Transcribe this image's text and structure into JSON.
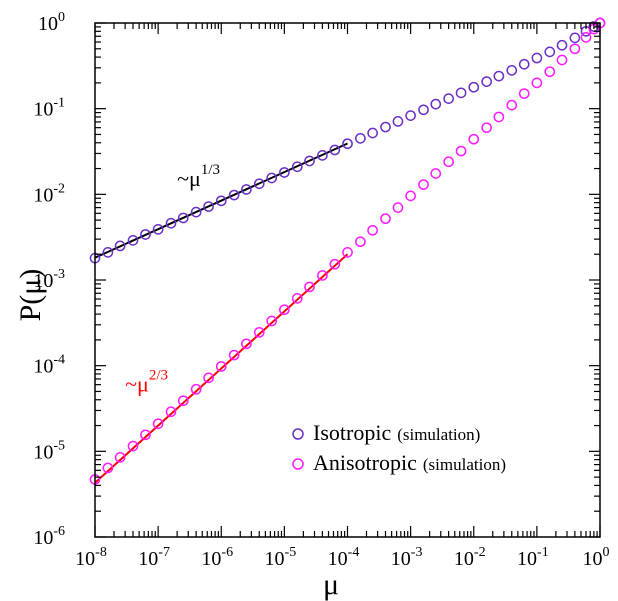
{
  "chart_data": {
    "type": "scatter",
    "xscale": "log",
    "yscale": "log",
    "xlim": [
      1e-08,
      1
    ],
    "ylim": [
      1e-06,
      1
    ],
    "xlabel": "μ",
    "ylabel": "P(μ)",
    "grid": false,
    "legend_position": "bottom-right",
    "x_ticks": [
      {
        "base": "10",
        "exp": "-8",
        "value": 1e-08
      },
      {
        "base": "10",
        "exp": "-7",
        "value": 1e-07
      },
      {
        "base": "10",
        "exp": "-6",
        "value": 1e-06
      },
      {
        "base": "10",
        "exp": "-5",
        "value": 1e-05
      },
      {
        "base": "10",
        "exp": "-4",
        "value": 0.0001
      },
      {
        "base": "10",
        "exp": "-3",
        "value": 0.001
      },
      {
        "base": "10",
        "exp": "-2",
        "value": 0.01
      },
      {
        "base": "10",
        "exp": "-1",
        "value": 0.1
      },
      {
        "base": "10",
        "exp": "0",
        "value": 1
      }
    ],
    "y_ticks": [
      {
        "base": "10",
        "exp": "-6",
        "value": 1e-06
      },
      {
        "base": "10",
        "exp": "-5",
        "value": 1e-05
      },
      {
        "base": "10",
        "exp": "-4",
        "value": 0.0001
      },
      {
        "base": "10",
        "exp": "-3",
        "value": 0.001
      },
      {
        "base": "10",
        "exp": "-2",
        "value": 0.01
      },
      {
        "base": "10",
        "exp": "-1",
        "value": 0.1
      },
      {
        "base": "10",
        "exp": "0",
        "value": 1
      }
    ],
    "series": [
      {
        "name": "Isotropic",
        "name_suffix": "(simulation)",
        "marker": "open-circle",
        "color": "#6a2fc8",
        "points": [
          [
            1e-08,
            0.0018
          ],
          [
            1.6e-08,
            0.0021
          ],
          [
            2.5e-08,
            0.0025
          ],
          [
            4e-08,
            0.0029
          ],
          [
            6.3e-08,
            0.0034
          ],
          [
            1e-07,
            0.0039
          ],
          [
            1.6e-07,
            0.0046
          ],
          [
            2.5e-07,
            0.0053
          ],
          [
            4e-07,
            0.0062
          ],
          [
            6.3e-07,
            0.0072
          ],
          [
            1e-06,
            0.0084
          ],
          [
            1.6e-06,
            0.0098
          ],
          [
            2.5e-06,
            0.0114
          ],
          [
            4e-06,
            0.0133
          ],
          [
            6.3e-06,
            0.0155
          ],
          [
            1e-05,
            0.018
          ],
          [
            1.6e-05,
            0.021
          ],
          [
            2.5e-05,
            0.0245
          ],
          [
            4e-05,
            0.0285
          ],
          [
            6.3e-05,
            0.033
          ],
          [
            0.0001,
            0.039
          ],
          [
            0.00016,
            0.045
          ],
          [
            0.00025,
            0.052
          ],
          [
            0.0004,
            0.061
          ],
          [
            0.00063,
            0.071
          ],
          [
            0.001,
            0.083
          ],
          [
            0.0016,
            0.097
          ],
          [
            0.0025,
            0.113
          ],
          [
            0.004,
            0.131
          ],
          [
            0.0063,
            0.153
          ],
          [
            0.01,
            0.178
          ],
          [
            0.016,
            0.207
          ],
          [
            0.025,
            0.24
          ],
          [
            0.04,
            0.28
          ],
          [
            0.063,
            0.33
          ],
          [
            0.1,
            0.39
          ],
          [
            0.16,
            0.46
          ],
          [
            0.25,
            0.55
          ],
          [
            0.4,
            0.67
          ],
          [
            0.6,
            0.8
          ],
          [
            0.8,
            0.91
          ],
          [
            1,
            1
          ]
        ]
      },
      {
        "name": "Anisotropic",
        "name_suffix": "(simulation)",
        "marker": "open-circle",
        "color": "#ff1aff",
        "points": [
          [
            1e-08,
            4.7e-06
          ],
          [
            1.6e-08,
            6.4e-06
          ],
          [
            2.5e-08,
            8.5e-06
          ],
          [
            4e-08,
            1.15e-05
          ],
          [
            6.3e-08,
            1.56e-05
          ],
          [
            1e-07,
            2.1e-05
          ],
          [
            1.6e-07,
            2.9e-05
          ],
          [
            2.5e-07,
            3.9e-05
          ],
          [
            4e-07,
            5.3e-05
          ],
          [
            6.3e-07,
            7.2e-05
          ],
          [
            1e-06,
            9.8e-05
          ],
          [
            1.6e-06,
            0.000133
          ],
          [
            2.5e-06,
            0.00018
          ],
          [
            4e-06,
            0.000245
          ],
          [
            6.3e-06,
            0.000332
          ],
          [
            1e-05,
            0.00045
          ],
          [
            1.6e-05,
            0.00061
          ],
          [
            2.5e-05,
            0.00083
          ],
          [
            4e-05,
            0.00113
          ],
          [
            6.3e-05,
            0.00153
          ],
          [
            0.0001,
            0.0021
          ],
          [
            0.00016,
            0.0028
          ],
          [
            0.00025,
            0.0038
          ],
          [
            0.0004,
            0.0052
          ],
          [
            0.00063,
            0.007
          ],
          [
            0.001,
            0.0096
          ],
          [
            0.0016,
            0.013
          ],
          [
            0.0025,
            0.0175
          ],
          [
            0.004,
            0.024
          ],
          [
            0.0063,
            0.032
          ],
          [
            0.01,
            0.044
          ],
          [
            0.016,
            0.06
          ],
          [
            0.025,
            0.08
          ],
          [
            0.04,
            0.11
          ],
          [
            0.063,
            0.15
          ],
          [
            0.1,
            0.2
          ],
          [
            0.16,
            0.27
          ],
          [
            0.25,
            0.37
          ],
          [
            0.4,
            0.5
          ],
          [
            0.6,
            0.68
          ],
          [
            0.8,
            0.85
          ],
          [
            1,
            1
          ]
        ]
      }
    ],
    "fit_lines": [
      {
        "color": "#000000",
        "x0": 1e-08,
        "x1": 0.0001,
        "y0": 0.00182,
        "slope": 0.3333
      },
      {
        "color": "#ff0000",
        "x0": 1e-08,
        "x1": 0.0001,
        "y0": 4.3e-06,
        "slope": 0.6667
      }
    ],
    "annotations": [
      {
        "prefix": "~μ",
        "exp": "1/3",
        "color": "#000000",
        "x": 2e-07,
        "y": 0.0125
      },
      {
        "prefix": "~μ",
        "exp": "2/3",
        "color": "#ff0000",
        "x": 3e-08,
        "y": 5e-05
      }
    ]
  }
}
